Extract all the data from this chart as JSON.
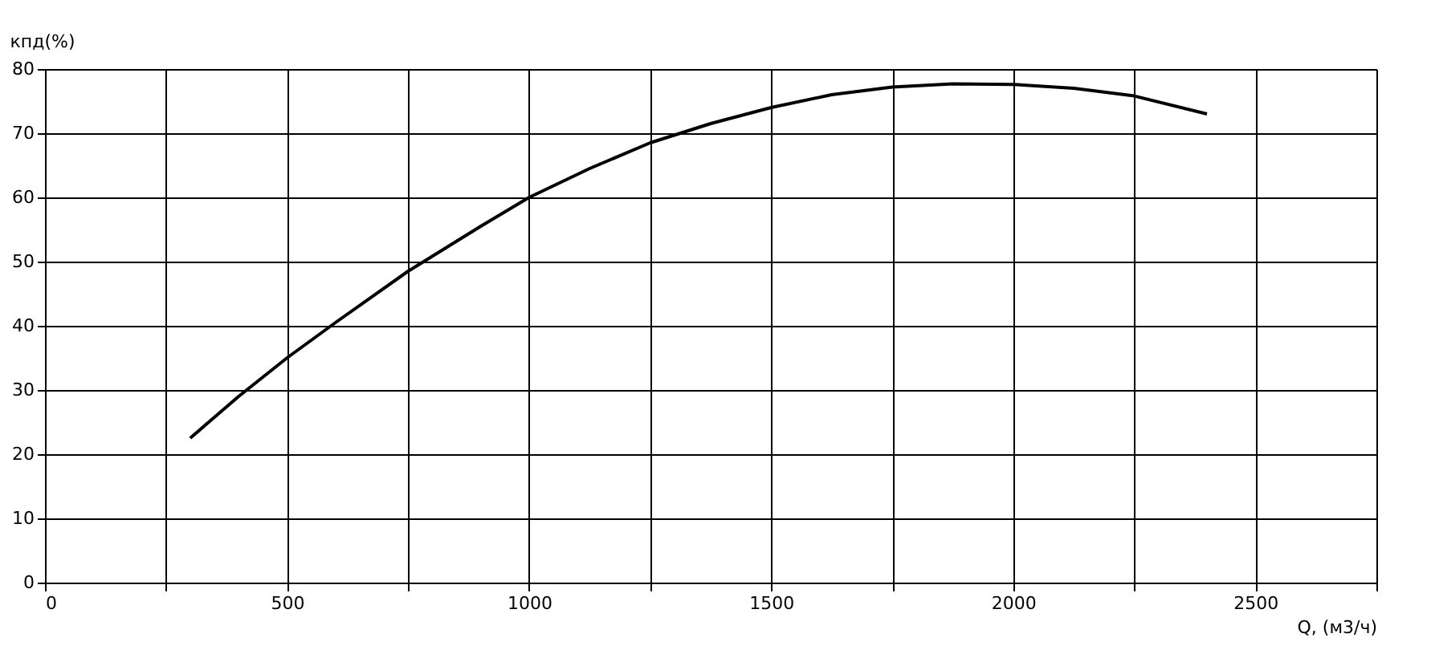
{
  "chart_data": {
    "type": "line",
    "xlabel": "Q, (м3/ч)",
    "ylabel": "кпд(%)",
    "x": [
      300,
      400,
      500,
      600,
      750,
      900,
      1000,
      1125,
      1250,
      1375,
      1500,
      1625,
      1750,
      1875,
      2000,
      2125,
      2250,
      2400
    ],
    "series": [
      {
        "color": "#000000",
        "values": [
          22.5,
          29,
          35,
          40.5,
          48.5,
          55.5,
          60,
          64.5,
          68.5,
          71.5,
          74,
          76,
          77.2,
          77.7,
          77.6,
          77,
          75.8,
          73
        ]
      }
    ],
    "xlim": [
      0,
      2750
    ],
    "xticks": [
      0,
      {
        "value": 250,
        "label": null
      },
      500,
      {
        "value": 750,
        "label": null
      },
      1000,
      {
        "value": 1250,
        "label": null
      },
      1500,
      {
        "value": 1750,
        "label": null
      },
      2000,
      {
        "value": 2250,
        "label": null
      },
      2500,
      {
        "value": 2750,
        "label": null
      }
    ],
    "ylim": [
      0,
      80
    ],
    "yticks": [
      0,
      10,
      20,
      30,
      40,
      50,
      60,
      70,
      80
    ],
    "grid": true,
    "marker": "none",
    "line_style": "solid"
  }
}
